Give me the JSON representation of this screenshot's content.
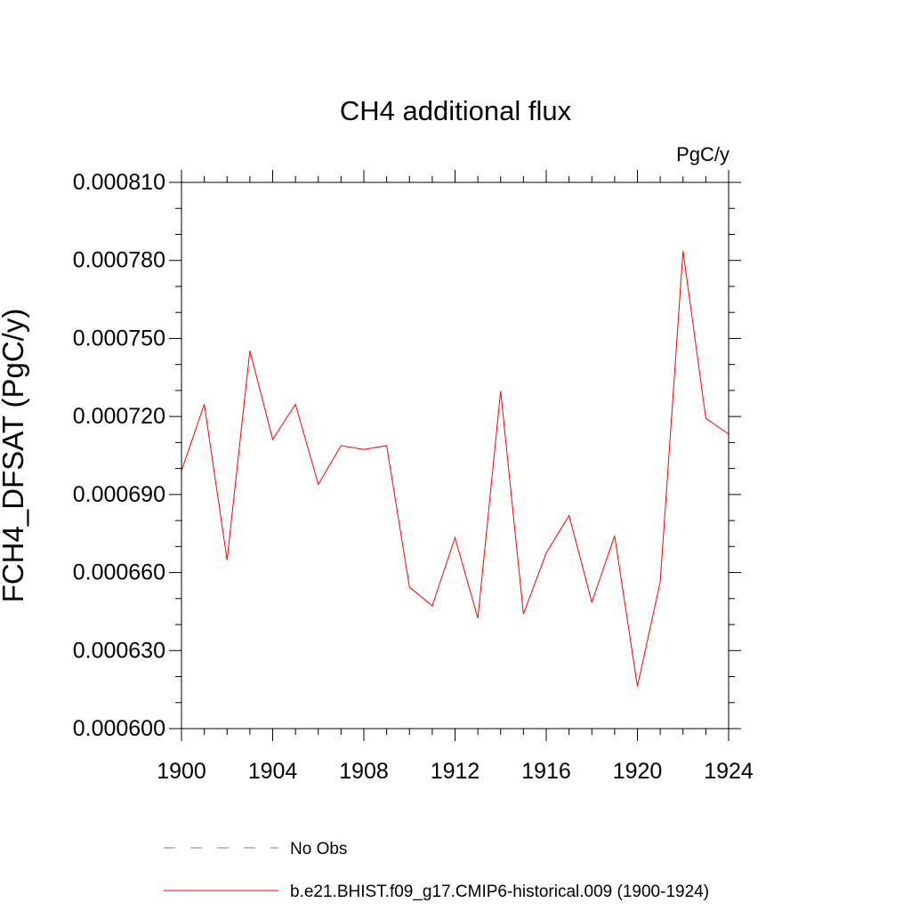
{
  "chart_data": {
    "type": "line",
    "title": "CH4 additional flux",
    "units": "PgC/y",
    "xlabel": "",
    "ylabel": "FCH4_DFSAT  (PgC/y)",
    "xlim": [
      1900,
      1924
    ],
    "ylim": [
      0.0006,
      0.00081
    ],
    "x_ticks": [
      1900,
      1904,
      1908,
      1912,
      1916,
      1920,
      1924
    ],
    "x_tick_labels": [
      "1900",
      "1904",
      "1908",
      "1912",
      "1916",
      "1920",
      "1924"
    ],
    "y_ticks": [
      0.0006,
      0.00063,
      0.00066,
      0.00069,
      0.00072,
      0.00075,
      0.00078,
      0.00081
    ],
    "y_tick_labels": [
      "0.000600",
      "0.000630",
      "0.000660",
      "0.000690",
      "0.000720",
      "0.000750",
      "0.000780",
      "0.000810"
    ],
    "grid": false,
    "legend_position": "bottom",
    "series": [
      {
        "name": "b.e21.BHIST.f09_g17.CMIP6-historical.009 (1900-1924)",
        "color": "#ff0000",
        "dash": "solid",
        "x": [
          1900,
          1901,
          1902,
          1903,
          1904,
          1905,
          1906,
          1907,
          1908,
          1909,
          1910,
          1911,
          1912,
          1913,
          1914,
          1915,
          1916,
          1917,
          1918,
          1919,
          1920,
          1921,
          1922,
          1923,
          1924
        ],
        "values": [
          0.0006991,
          0.0007247,
          0.0006648,
          0.0007453,
          0.0007112,
          0.0007247,
          0.0006939,
          0.0007088,
          0.0007073,
          0.0007088,
          0.0006544,
          0.0006472,
          0.0006734,
          0.0006424,
          0.0007298,
          0.0006441,
          0.0006675,
          0.0006819,
          0.0006486,
          0.0006741,
          0.0006162,
          0.0006565,
          0.0007837,
          0.0007193,
          0.0007132
        ]
      }
    ],
    "legend": [
      {
        "label": "No Obs",
        "color": "#7777cc",
        "dash": "dashed"
      },
      {
        "label": "b.e21.BHIST.f09_g17.CMIP6-historical.009 (1900-1924)",
        "color": "#ff0000",
        "dash": "solid"
      }
    ]
  }
}
